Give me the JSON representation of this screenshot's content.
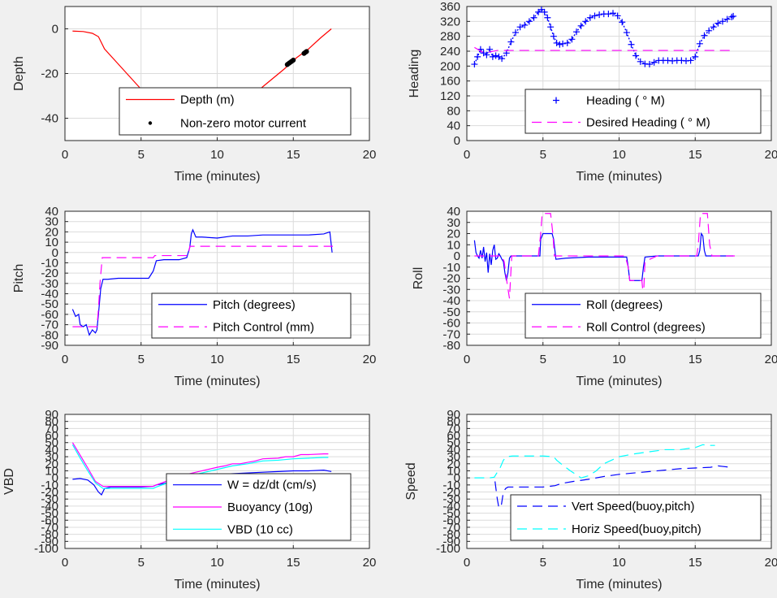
{
  "chart_data": [
    {
      "id": "depth",
      "type": "line",
      "xlabel": "Time (minutes)",
      "ylabel": "Depth",
      "xlim": [
        0,
        20
      ],
      "ylim": [
        -50,
        10
      ],
      "xticks": [
        0,
        5,
        10,
        15,
        20
      ],
      "yticks": [
        -40,
        -20,
        0
      ],
      "legend": "bottom-right",
      "grid": true,
      "series": [
        {
          "name": "Depth (m)",
          "color": "#ff0000",
          "style": "line",
          "x": [
            0.5,
            1.2,
            1.8,
            2.2,
            2.6,
            3.4,
            4.2,
            5.0,
            5.6,
            6.2,
            7.0,
            8.0,
            8.8,
            9.6,
            10.4,
            11.2,
            12.0,
            12.8,
            13.6,
            14.4,
            15.2,
            16.0,
            16.8,
            17.5
          ],
          "y": [
            -1,
            -1.2,
            -2,
            -3.5,
            -9,
            -15,
            -21,
            -27,
            -31,
            -34,
            -36.5,
            -38.5,
            -39.3,
            -39,
            -37.5,
            -35,
            -31,
            -27,
            -22.5,
            -18,
            -13,
            -9,
            -4,
            0
          ]
        },
        {
          "name": "Non-zero motor current",
          "color": "#000000",
          "style": "dots",
          "segments": [
            {
              "x": [
                5.8,
                6.5,
                7.2,
                7.9,
                8.6,
                9.3,
                10.0,
                10.6,
                11.2,
                11.8,
                12.5
              ],
              "y": [
                -31.5,
                -34.5,
                -36.5,
                -38,
                -39,
                -39.2,
                -38.4,
                -37,
                -35,
                -32.5,
                -29
              ]
            },
            {
              "x": [
                14.6,
                15.0
              ],
              "y": [
                -16,
                -14
              ]
            },
            {
              "x": [
                15.7,
                15.9
              ],
              "y": [
                -11,
                -10
              ]
            }
          ]
        }
      ]
    },
    {
      "id": "heading",
      "type": "line",
      "xlabel": "Time (minutes)",
      "ylabel": "Heading",
      "xlim": [
        0,
        20
      ],
      "ylim": [
        0,
        360
      ],
      "xticks": [
        0,
        5,
        10,
        15,
        20
      ],
      "yticks": [
        0,
        40,
        80,
        120,
        160,
        200,
        240,
        280,
        320,
        360
      ],
      "legend": "bottom-right",
      "grid": true,
      "series": [
        {
          "name": "Heading (   ° M)",
          "color": "#0000ff",
          "style": "plus",
          "x": [
            0.5,
            0.7,
            0.9,
            1.1,
            1.3,
            1.5,
            1.7,
            1.9,
            2.1,
            2.3,
            2.6,
            2.9,
            3.2,
            3.5,
            3.8,
            4.1,
            4.4,
            4.7,
            4.9,
            5.1,
            5.3,
            5.5,
            5.7,
            5.9,
            6.1,
            6.3,
            6.6,
            6.9,
            7.2,
            7.5,
            7.8,
            8.1,
            8.4,
            8.7,
            9.0,
            9.3,
            9.6,
            9.9,
            10.2,
            10.5,
            10.8,
            11.1,
            11.4,
            11.7,
            12.0,
            12.3,
            12.6,
            12.9,
            13.2,
            13.5,
            13.8,
            14.1,
            14.4,
            14.7,
            15.0,
            15.3,
            15.6,
            15.9,
            16.2,
            16.5,
            16.8,
            17.1,
            17.4,
            17.5
          ],
          "y": [
            205,
            225,
            245,
            235,
            230,
            245,
            225,
            228,
            225,
            220,
            235,
            265,
            290,
            305,
            310,
            320,
            330,
            345,
            352,
            345,
            330,
            305,
            280,
            262,
            258,
            260,
            262,
            272,
            292,
            308,
            320,
            330,
            335,
            338,
            340,
            340,
            342,
            335,
            318,
            290,
            258,
            228,
            212,
            206,
            205,
            210,
            215,
            215,
            215,
            214,
            215,
            215,
            214,
            215,
            225,
            260,
            282,
            295,
            305,
            315,
            320,
            326,
            332,
            334
          ]
        },
        {
          "name": "Desired Heading (      ° M)",
          "color": "#ff00ff",
          "style": "dashed",
          "x": [
            0.5,
            1.0,
            1.5,
            2.0,
            17.6
          ],
          "y": [
            250,
            238,
            238,
            242,
            242
          ]
        }
      ]
    },
    {
      "id": "pitch",
      "type": "line",
      "xlabel": "Time (minutes)",
      "ylabel": "Pitch",
      "xlim": [
        0,
        20
      ],
      "ylim": [
        -90,
        40
      ],
      "xticks": [
        0,
        5,
        10,
        15,
        20
      ],
      "yticks": [
        -90,
        -80,
        -70,
        -60,
        -50,
        -40,
        -30,
        -20,
        -10,
        0,
        10,
        20,
        30,
        40
      ],
      "legend": "bottom-right",
      "grid": true,
      "series": [
        {
          "name": "Pitch (degrees)",
          "color": "#0000ff",
          "style": "line",
          "x": [
            0.5,
            0.7,
            0.9,
            1.0,
            1.2,
            1.4,
            1.6,
            1.8,
            2.0,
            2.1,
            2.2,
            2.35,
            2.5,
            2.8,
            3.5,
            4.5,
            5.5,
            5.8,
            6.0,
            6.5,
            7.5,
            8.0,
            8.2,
            8.3,
            8.4,
            8.6,
            9.0,
            10.0,
            11.0,
            12.0,
            13.0,
            14.0,
            15.0,
            16.0,
            17.0,
            17.4,
            17.55
          ],
          "y": [
            -55,
            -62,
            -60,
            -70,
            -72,
            -70,
            -80,
            -75,
            -78,
            -75,
            -60,
            -35,
            -26,
            -26,
            -25,
            -25,
            -25,
            -18,
            -8,
            -7,
            -7,
            -5,
            5,
            18,
            22,
            15,
            15,
            14,
            16,
            16,
            17,
            17,
            17,
            17,
            18,
            20,
            0
          ]
        },
        {
          "name": "Pitch Control (mm)",
          "color": "#ff00ff",
          "style": "dashed",
          "x": [
            0.5,
            2.1,
            2.2,
            2.3,
            2.45,
            5.8,
            5.9,
            8.1,
            8.2,
            17.6
          ],
          "y": [
            -72,
            -72,
            -55,
            -30,
            -5,
            -5,
            -3,
            -3,
            6,
            6
          ]
        }
      ]
    },
    {
      "id": "roll",
      "type": "line",
      "xlabel": "Time (minutes)",
      "ylabel": "Roll",
      "xlim": [
        0,
        20
      ],
      "ylim": [
        -80,
        40
      ],
      "xticks": [
        0,
        5,
        10,
        15,
        20
      ],
      "yticks": [
        -80,
        -70,
        -60,
        -50,
        -40,
        -30,
        -20,
        -10,
        0,
        10,
        20,
        30,
        40
      ],
      "legend": "bottom-right",
      "grid": true,
      "series": [
        {
          "name": "Roll (degrees)",
          "color": "#0000ff",
          "style": "line",
          "x": [
            0.5,
            0.6,
            0.7,
            0.8,
            0.9,
            1.0,
            1.1,
            1.2,
            1.3,
            1.4,
            1.5,
            1.6,
            1.7,
            1.8,
            1.9,
            2.0,
            2.1,
            2.2,
            2.3,
            2.4,
            2.5,
            2.6,
            2.7,
            2.8,
            2.9,
            3.0,
            4.8,
            4.85,
            5.0,
            5.6,
            5.7,
            5.85,
            6.5,
            8.0,
            10.5,
            10.6,
            10.7,
            11.5,
            11.6,
            11.7,
            12.5,
            15.2,
            15.3,
            15.4,
            15.5,
            15.6,
            15.7,
            17.5
          ],
          "y": [
            14,
            3,
            0,
            -2,
            5,
            -2,
            8,
            -5,
            3,
            -15,
            2,
            -8,
            5,
            10,
            -3,
            -2,
            2,
            0,
            -3,
            -5,
            -15,
            -22,
            -15,
            -2,
            0,
            0,
            0,
            15,
            20,
            20,
            15,
            -3,
            -2,
            -1,
            -1,
            -10,
            -22,
            -22,
            -10,
            -1,
            0,
            0,
            5,
            20,
            18,
            5,
            0,
            0
          ]
        },
        {
          "name": "Roll Control (degrees)",
          "color": "#ff00ff",
          "style": "dashed",
          "x": [
            0.5,
            2.3,
            2.45,
            2.65,
            2.8,
            2.95,
            4.7,
            4.85,
            4.95,
            5.5,
            5.65,
            5.75,
            10.4,
            10.6,
            10.7,
            11.5,
            11.6,
            11.7,
            12.5,
            15.1,
            15.2,
            15.35,
            15.8,
            15.95,
            16.1,
            17.6
          ],
          "y": [
            0,
            0,
            -5,
            -25,
            -38,
            0,
            0,
            20,
            38,
            38,
            20,
            0,
            0,
            -10,
            -22,
            -22,
            -38,
            -5,
            0,
            0,
            10,
            38,
            38,
            10,
            0,
            0
          ]
        }
      ]
    },
    {
      "id": "vbd",
      "type": "line",
      "xlabel": "Time (minutes)",
      "ylabel": "VBD",
      "xlim": [
        0,
        20
      ],
      "ylim": [
        -100,
        90
      ],
      "xticks": [
        0,
        5,
        10,
        15,
        20
      ],
      "yticks": [
        -100,
        -90,
        -80,
        -70,
        -60,
        -50,
        -40,
        -30,
        -20,
        -10,
        0,
        10,
        20,
        30,
        40,
        50,
        60,
        70,
        80,
        90
      ],
      "legend": "bottom-right",
      "grid": true,
      "series": [
        {
          "name": "W = dz/dt (cm/s)",
          "color": "#0000ff",
          "style": "line",
          "x": [
            0.5,
            1.0,
            1.5,
            1.9,
            2.2,
            2.4,
            2.6,
            3.0,
            4.0,
            5.0,
            5.8,
            6.0,
            7.0,
            8.0,
            9.0,
            10.0,
            11.0,
            12.0,
            13.0,
            14.0,
            15.0,
            16.0,
            17.0,
            17.5
          ],
          "y": [
            -2,
            -1,
            -3,
            -10,
            -20,
            -24,
            -15,
            -13,
            -13,
            -13,
            -12,
            -10,
            -6,
            -2,
            2,
            5,
            6,
            7,
            8,
            9,
            10,
            10,
            11,
            9
          ]
        },
        {
          "name": "Buoyancy (10g)",
          "color": "#ff00ff",
          "style": "line",
          "x": [
            0.5,
            1.0,
            1.5,
            2.0,
            2.5,
            3.0,
            4.0,
            5.0,
            5.8,
            6.0,
            7.0,
            8.0,
            9.0,
            10.0,
            10.5,
            11.0,
            11.5,
            12.0,
            12.5,
            13.0,
            14.0,
            14.5,
            15.0,
            15.5,
            16.0,
            17.0,
            17.3
          ],
          "y": [
            50,
            32,
            14,
            -5,
            -12,
            -12,
            -12,
            -12,
            -12,
            -10,
            -2,
            5,
            10,
            15,
            17,
            20,
            20,
            22,
            24,
            27,
            28,
            30,
            30,
            33,
            33,
            34,
            34
          ]
        },
        {
          "name": "VBD (10 cc)",
          "color": "#00ffff",
          "style": "line",
          "x": [
            0.5,
            1.0,
            1.5,
            2.0,
            2.5,
            3.0,
            4.0,
            5.0,
            5.8,
            6.0,
            7.0,
            8.0,
            9.0,
            10.0,
            11.0,
            12.0,
            12.5,
            13.0,
            14.0,
            15.0,
            16.0,
            17.0,
            17.3
          ],
          "y": [
            47,
            28,
            10,
            -7,
            -15,
            -15,
            -15,
            -15,
            -15,
            -13,
            -5,
            2,
            7,
            12,
            17,
            20,
            22,
            24,
            25,
            27,
            28,
            29,
            29
          ]
        }
      ]
    },
    {
      "id": "speed",
      "type": "line",
      "xlabel": "Time (minutes)",
      "ylabel": "Speed",
      "xlim": [
        0,
        20
      ],
      "ylim": [
        -100,
        90
      ],
      "xticks": [
        0,
        5,
        10,
        15,
        20
      ],
      "yticks": [
        -100,
        -90,
        -80,
        -70,
        -60,
        -50,
        -40,
        -30,
        -20,
        -10,
        0,
        10,
        20,
        30,
        40,
        50,
        60,
        70,
        80,
        90
      ],
      "legend": "bottom-right",
      "grid": true,
      "series": [
        {
          "name": "Vert Speed(buoy,pitch)",
          "color": "#0000ff",
          "style": "dashed",
          "x": [
            1.85,
            2.0,
            2.1,
            2.25,
            2.4,
            2.55,
            2.7,
            3.0,
            4.0,
            5.0,
            5.8,
            6.2,
            7.0,
            8.0,
            9.0,
            10.0,
            11.0,
            12.0,
            13.0,
            14.0,
            15.0,
            16.0,
            16.5,
            17.3
          ],
          "y": [
            -5,
            -30,
            -42,
            -41,
            -20,
            -15,
            -13,
            -13,
            -13,
            -13,
            -11,
            -8,
            -5,
            -2,
            2,
            5,
            7,
            9,
            11,
            13,
            14,
            15,
            17,
            15
          ]
        },
        {
          "name": "Horiz Speed(buoy,pitch)",
          "color": "#00ffff",
          "style": "dashed",
          "x": [
            0.5,
            1.5,
            1.8,
            2.0,
            2.2,
            2.4,
            2.6,
            3.0,
            4.0,
            5.0,
            5.7,
            5.9,
            6.3,
            6.8,
            7.5,
            8.0,
            8.5,
            9.0,
            9.5,
            10.0,
            11.0,
            12.0,
            13.0,
            14.0,
            15.0,
            15.5,
            16.0,
            16.3
          ],
          "y": [
            0,
            0,
            1,
            8,
            15,
            25,
            30,
            31,
            31,
            31,
            30,
            25,
            18,
            10,
            0,
            3,
            10,
            20,
            25,
            30,
            34,
            37,
            40,
            40,
            43,
            47,
            46,
            46
          ]
        }
      ]
    }
  ]
}
